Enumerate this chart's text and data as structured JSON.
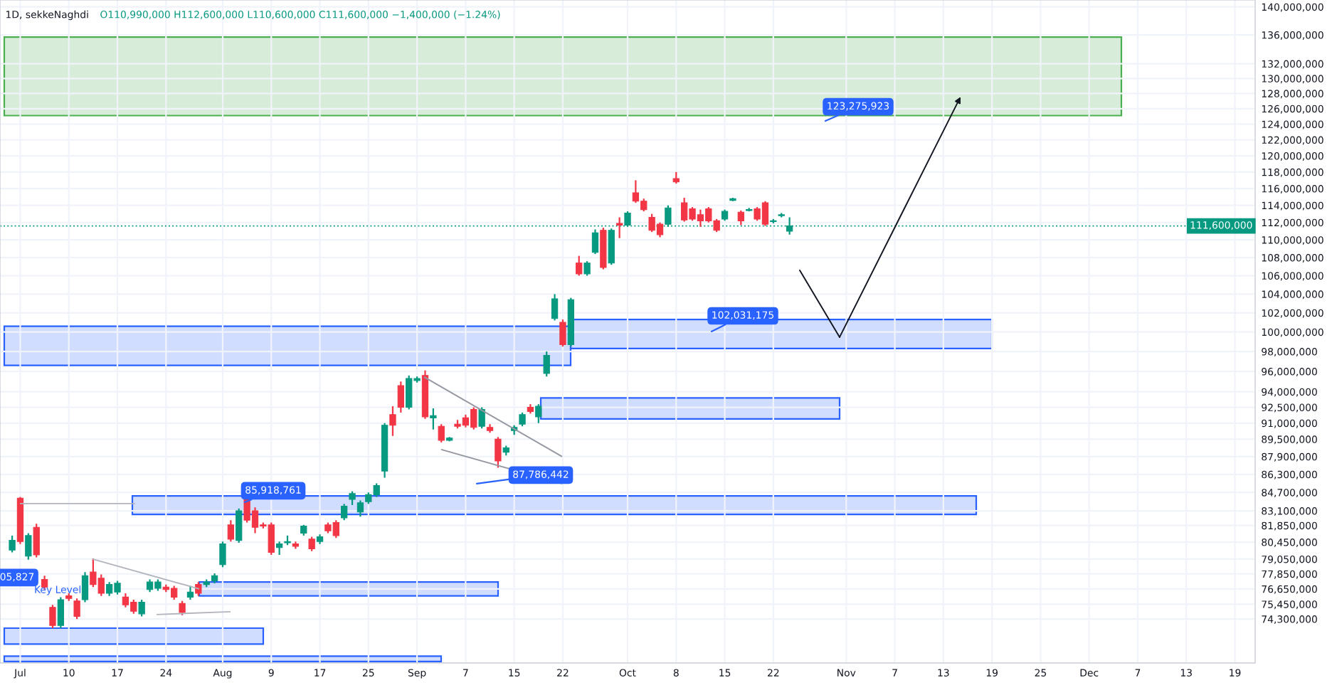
{
  "chart_data": {
    "type": "candlestick",
    "title": "1D, sekkeNaghdi",
    "subtitle": "O110,990,000 H112,600,000 L110,600,000 C111,600,000 −1,400,000 (−1.24%)",
    "categories": [
      null,
      null,
      "Jul",
      null,
      null,
      null,
      null,
      null,
      "10",
      null,
      null,
      null,
      null,
      null,
      "17",
      null,
      null,
      null,
      null,
      null,
      "24",
      null,
      null,
      null,
      null,
      null,
      null,
      "Aug",
      null,
      null,
      null,
      null,
      null,
      "9",
      null,
      null,
      null,
      null,
      null,
      "17",
      null,
      null,
      null,
      null,
      null,
      "25",
      null,
      null,
      null,
      null,
      null,
      "Sep",
      null,
      null,
      null,
      null,
      null,
      "7",
      null,
      null,
      null,
      null,
      null,
      "15",
      null,
      null,
      null,
      null,
      null,
      "22",
      null,
      null,
      null,
      null,
      null,
      null,
      null,
      "Oct",
      null,
      null,
      null,
      null,
      null,
      "8",
      null,
      null,
      null,
      null,
      null,
      "15",
      null,
      null,
      null,
      null,
      null,
      "22",
      null,
      null,
      null,
      null,
      null,
      null,
      null,
      null,
      "Nov",
      null,
      null,
      null,
      null,
      null,
      "7",
      null,
      null,
      null,
      null,
      null,
      "13",
      null,
      null,
      null,
      null,
      null,
      "19",
      null,
      null,
      null,
      null,
      null,
      "25",
      null,
      null,
      null,
      null,
      null,
      "Dec",
      null,
      null,
      null,
      null,
      null,
      "7",
      null,
      null,
      null,
      null,
      null,
      "13",
      null,
      null,
      null,
      null,
      null,
      "19",
      null,
      null
    ],
    "ohlc": [
      null,
      [
        79800000,
        81000000,
        79600000,
        80600000
      ],
      [
        84200000,
        84300000,
        80300000,
        80500000
      ],
      [
        79300000,
        81200000,
        79000000,
        81000000
      ],
      [
        81700000,
        82000000,
        79200000,
        79400000
      ],
      [
        77400000,
        77700000,
        76600000,
        76800000
      ],
      [
        75200000,
        75400000,
        73600000,
        73800000
      ],
      [
        73800000,
        76000000,
        73600000,
        75800000
      ],
      [
        76100000,
        76300000,
        75700000,
        75900000
      ],
      [
        75700000,
        75900000,
        74300000,
        74500000
      ],
      [
        75800000,
        78000000,
        75600000,
        77700000
      ],
      [
        78000000,
        79100000,
        76800000,
        77000000
      ],
      [
        77500000,
        77800000,
        76100000,
        76300000
      ],
      [
        76300000,
        77200000,
        76100000,
        77000000
      ],
      [
        76400000,
        77300000,
        76200000,
        77100000
      ],
      [
        76000000,
        76300000,
        75200000,
        75400000
      ],
      [
        75600000,
        75800000,
        74700000,
        74900000
      ],
      [
        74700000,
        75800000,
        74500000,
        75600000
      ],
      [
        76600000,
        77400000,
        76400000,
        77200000
      ],
      [
        76700000,
        77400000,
        76500000,
        77200000
      ],
      [
        76800000,
        77000000,
        76400000,
        76600000
      ],
      [
        76700000,
        76900000,
        75800000,
        76000000
      ],
      [
        75500000,
        75700000,
        74600000,
        74800000
      ],
      [
        76000000,
        76900000,
        75800000,
        76400000
      ],
      [
        77000000,
        77200000,
        76100000,
        76300000
      ],
      [
        77000000,
        77400000,
        76800000,
        77200000
      ],
      [
        77300000,
        77900000,
        77100000,
        77700000
      ],
      [
        78600000,
        80500000,
        78400000,
        80300000
      ],
      [
        81900000,
        82300000,
        80500000,
        80700000
      ],
      [
        80600000,
        83300000,
        80400000,
        83100000
      ],
      [
        84200000,
        84400000,
        82100000,
        82300000
      ],
      [
        83100000,
        83400000,
        81200000,
        81700000
      ],
      [
        81900000,
        82100000,
        81600000,
        81800000
      ],
      [
        81900000,
        82100000,
        79400000,
        79600000
      ],
      [
        80000000,
        80500000,
        79400000,
        80300000
      ],
      [
        80400000,
        81000000,
        80200000,
        80500000
      ],
      [
        80300000,
        80500000,
        79900000,
        80100000
      ],
      [
        81200000,
        81900000,
        81000000,
        81800000
      ],
      [
        80700000,
        80900000,
        79700000,
        79900000
      ],
      [
        80500000,
        81100000,
        80300000,
        80900000
      ],
      [
        81900000,
        82100000,
        81200000,
        81400000
      ],
      [
        82100000,
        82300000,
        80800000,
        81000000
      ],
      [
        82500000,
        83700000,
        82300000,
        83500000
      ],
      [
        84100000,
        84800000,
        83600000,
        84600000
      ],
      [
        83000000,
        84000000,
        82600000,
        83800000
      ],
      [
        83900000,
        84700000,
        83700000,
        84500000
      ],
      [
        84500000,
        85500000,
        84300000,
        85300000
      ],
      [
        86600000,
        91000000,
        86000000,
        90800000
      ],
      [
        91800000,
        92600000,
        89800000,
        90800000
      ],
      [
        94600000,
        95000000,
        92000000,
        92500000
      ],
      [
        92500000,
        95600000,
        92300000,
        95300000
      ],
      [
        95100000,
        95500000,
        94900000,
        95300000
      ],
      [
        95600000,
        96100000,
        91400000,
        91600000
      ],
      [
        91500000,
        92400000,
        90400000,
        91700000
      ],
      [
        90700000,
        90900000,
        89200000,
        89400000
      ],
      [
        89400000,
        89700000,
        89300000,
        89600000
      ],
      [
        90900000,
        91300000,
        90500000,
        90700000
      ],
      [
        91500000,
        91800000,
        90600000,
        90800000
      ],
      [
        92300000,
        92500000,
        90400000,
        90600000
      ],
      [
        90700000,
        92500000,
        90500000,
        92300000
      ],
      [
        90600000,
        90900000,
        90100000,
        90300000
      ],
      [
        89500000,
        89700000,
        86900000,
        87500000
      ],
      [
        88300000,
        88900000,
        88000000,
        88700000
      ],
      [
        90300000,
        90800000,
        89900000,
        90600000
      ],
      [
        90900000,
        92000000,
        90700000,
        91800000
      ],
      [
        92500000,
        92800000,
        91900000,
        92100000
      ],
      [
        91600000,
        92800000,
        91000000,
        92600000
      ],
      [
        95800000,
        98000000,
        95500000,
        97600000
      ],
      [
        101400000,
        104000000,
        101200000,
        103500000
      ],
      [
        101000000,
        101300000,
        98500000,
        98700000
      ],
      [
        98700000,
        103600000,
        98500000,
        103400000
      ],
      [
        107400000,
        108200000,
        106000000,
        106200000
      ],
      [
        106200000,
        107600000,
        106000000,
        107400000
      ],
      [
        108600000,
        111200000,
        108400000,
        110800000
      ],
      [
        111100000,
        111400000,
        106700000,
        106900000
      ],
      [
        107400000,
        111300000,
        107200000,
        111100000
      ],
      [
        111900000,
        112600000,
        110200000,
        111700000
      ],
      [
        111700000,
        113300000,
        111500000,
        113100000
      ],
      [
        115500000,
        117000000,
        114300000,
        114500000
      ],
      [
        114500000,
        114800000,
        113300000,
        113500000
      ],
      [
        112600000,
        113000000,
        110900000,
        111100000
      ],
      [
        111800000,
        112000000,
        110300000,
        110600000
      ],
      [
        111800000,
        114000000,
        111500000,
        113700000
      ],
      [
        117200000,
        118000000,
        116600000,
        116800000
      ],
      [
        114300000,
        114900000,
        112100000,
        112300000
      ],
      [
        113600000,
        113800000,
        112200000,
        112400000
      ],
      [
        112900000,
        113500000,
        111500000,
        112200000
      ],
      [
        113600000,
        113800000,
        112000000,
        112200000
      ],
      [
        112200000,
        112400000,
        110900000,
        111100000
      ],
      [
        112400000,
        113500000,
        112200000,
        113300000
      ],
      [
        114600000,
        114900000,
        114500000,
        114800000
      ],
      [
        113200000,
        113400000,
        111700000,
        112200000
      ],
      [
        113400000,
        113700000,
        113300000,
        113500000
      ],
      [
        113600000,
        113800000,
        112200000,
        112400000
      ],
      [
        114300000,
        114500000,
        111600000,
        111800000
      ],
      [
        112100000,
        112400000,
        111900000,
        112200000
      ],
      [
        112800000,
        113100000,
        112600000,
        112900000
      ],
      [
        110990000,
        112600000,
        110600000,
        111600000
      ],
      null,
      null,
      null,
      null,
      null,
      null,
      null,
      null,
      null,
      null,
      null,
      null,
      null,
      null,
      null,
      null,
      null,
      null,
      null,
      null,
      null,
      null,
      null,
      null,
      null,
      null,
      null,
      null,
      null,
      null,
      null,
      null,
      null,
      null,
      null,
      null,
      null,
      null,
      null,
      null,
      null,
      null,
      null,
      null,
      null,
      null,
      null,
      null,
      null,
      null,
      null,
      null,
      null,
      null,
      null,
      null,
      null
    ],
    "colors": [
      null,
      "#089981",
      "#f23645",
      "#089981",
      "#f23645",
      "#f23645",
      "#f23645",
      "#089981",
      "#f23645",
      "#f23645",
      "#089981",
      "#f23645",
      "#f23645",
      "#089981",
      "#089981",
      "#f23645",
      "#f23645",
      "#089981",
      "#089981",
      "#089981",
      "#f23645",
      "#f23645",
      "#f23645",
      "#089981",
      "#f23645",
      "#089981",
      "#089981",
      "#089981",
      "#f23645",
      "#089981",
      "#f23645",
      "#f23645",
      "#f23645",
      "#f23645",
      "#089981",
      "#089981",
      "#f23645",
      "#089981",
      "#f23645",
      "#089981",
      "#f23645",
      "#f23645",
      "#089981",
      "#089981",
      "#089981",
      "#089981",
      "#089981",
      "#089981",
      "#f23645",
      "#f23645",
      "#089981",
      "#089981",
      "#f23645",
      "#089981",
      "#f23645",
      "#089981",
      "#f23645",
      "#f23645",
      "#f23645",
      "#089981",
      "#f23645",
      "#f23645",
      "#089981",
      "#089981",
      "#089981",
      "#f23645",
      "#089981",
      "#089981",
      "#089981",
      "#f23645",
      "#089981",
      "#f23645",
      "#089981",
      "#089981",
      "#f23645",
      "#089981",
      "#f23645",
      "#089981",
      "#f23645",
      "#f23645",
      "#f23645",
      "#f23645",
      "#089981",
      "#f23645",
      "#f23645",
      "#f23645",
      "#f23645",
      "#f23645",
      "#f23645",
      "#089981",
      "#089981",
      "#f23645",
      "#089981",
      "#f23645",
      "#f23645",
      "#089981",
      "#089981",
      "#089981",
      null,
      null,
      null,
      null,
      null,
      null,
      null,
      null,
      null,
      null,
      null,
      null,
      null,
      null,
      null,
      null,
      null,
      null,
      null,
      null,
      null,
      null,
      null,
      null,
      null,
      null,
      null,
      null,
      null,
      null,
      null,
      null,
      null,
      null,
      null,
      null,
      null,
      null,
      null,
      null,
      null,
      null,
      null,
      null,
      null,
      null,
      null,
      null,
      null,
      null,
      null,
      null,
      null,
      null,
      null,
      null,
      null
    ],
    "log": "y",
    "ylim": [
      71000000,
      141000000
    ],
    "yticks": [
      {
        "value": 140000000,
        "label": "140,000,000"
      },
      {
        "value": 136000000,
        "label": "136,000,000"
      },
      {
        "value": 132000000,
        "label": "132,000,000"
      },
      {
        "value": 130000000,
        "label": "130,000,000"
      },
      {
        "value": 128000000,
        "label": "128,000,000"
      },
      {
        "value": 126000000,
        "label": "126,000,000"
      },
      {
        "value": 124000000,
        "label": "124,000,000"
      },
      {
        "value": 122000000,
        "label": "122,000,000"
      },
      {
        "value": 120000000,
        "label": "120,000,000"
      },
      {
        "value": 118000000,
        "label": "118,000,000"
      },
      {
        "value": 116000000,
        "label": "116,000,000"
      },
      {
        "value": 114000000,
        "label": "114,000,000"
      },
      {
        "value": 112000000,
        "label": "112,000,000"
      },
      {
        "value": 110000000,
        "label": "110,000,000"
      },
      {
        "value": 108000000,
        "label": "108,000,000"
      },
      {
        "value": 106000000,
        "label": "106,000,000"
      },
      {
        "value": 104000000,
        "label": "104,000,000"
      },
      {
        "value": 102000000,
        "label": "102,000,000"
      },
      {
        "value": 100000000,
        "label": "100,000,000"
      },
      {
        "value": 98000000,
        "label": "98,000,000"
      },
      {
        "value": 96000000,
        "label": "96,000,000"
      },
      {
        "value": 94000000,
        "label": "94,000,000"
      },
      {
        "value": 92500000,
        "label": "92,500,000"
      },
      {
        "value": 91000000,
        "label": "91,000,000"
      },
      {
        "value": 89500000,
        "label": "89,500,000"
      },
      {
        "value": 87900000,
        "label": "87,900,000"
      },
      {
        "value": 86300000,
        "label": "86,300,000"
      },
      {
        "value": 84700000,
        "label": "84,700,000"
      },
      {
        "value": 83100000,
        "label": "83,100,000"
      },
      {
        "value": 81850000,
        "label": "81,850,000"
      },
      {
        "value": 80450000,
        "label": "80,450,000"
      },
      {
        "value": 79050000,
        "label": "79,050,000"
      },
      {
        "value": 77850000,
        "label": "77,850,000"
      },
      {
        "value": 76650000,
        "label": "76,650,000"
      },
      {
        "value": 75450000,
        "label": "75,450,000"
      },
      {
        "value": 74300000,
        "label": "74,300,000"
      }
    ],
    "grid": true,
    "ref_lines": [
      {
        "axis": "y",
        "value": 111600000,
        "label": "111,600,000",
        "color": "#089981",
        "line_style": "dotted"
      }
    ],
    "bands": [
      {
        "axis": "y",
        "from": 125100000,
        "to": 135700000,
        "color": "#4caf50"
      },
      {
        "axis": "y",
        "from": 96600000,
        "to": 100600000,
        "color": "#2962ff"
      },
      {
        "axis": "y",
        "from": 98300000,
        "to": 101300000,
        "color": "#2962ff"
      },
      {
        "axis": "y",
        "from": 91400000,
        "to": 93400000,
        "color": "#2962ff"
      },
      {
        "axis": "y",
        "from": 82800000,
        "to": 84400000,
        "color": "#2962ff"
      },
      {
        "axis": "y",
        "from": 76100000,
        "to": 77200000,
        "color": "#2962ff"
      },
      {
        "axis": "y",
        "from": 72400000,
        "to": 73600000,
        "color": "#2962ff"
      },
      {
        "axis": "y",
        "from": 71100000,
        "to": 71500000,
        "color": "#2962ff"
      }
    ],
    "annotations": [
      "85,918,761",
      "87,786,442",
      "102,031,175",
      "123,275,923",
      "05,827",
      "Key Level"
    ]
  }
}
